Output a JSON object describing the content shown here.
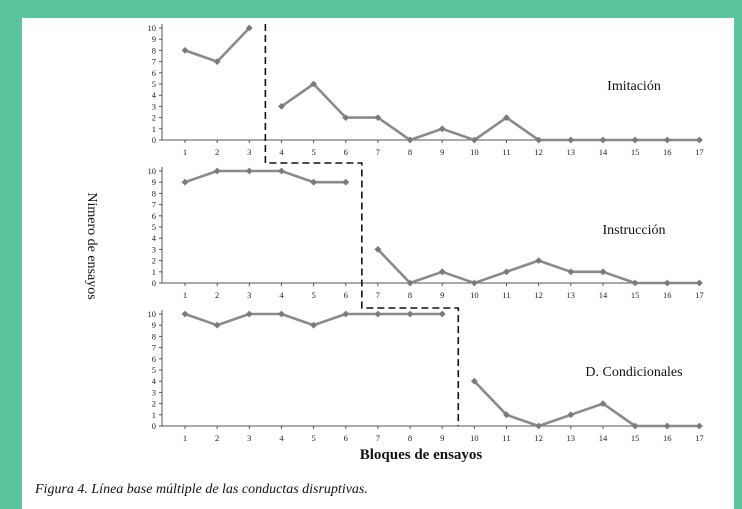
{
  "chart_data": {
    "type": "line",
    "x": [
      1,
      2,
      3,
      4,
      5,
      6,
      7,
      8,
      9,
      10,
      11,
      12,
      13,
      14,
      15,
      16,
      17
    ],
    "xlabel": "Bloques de ensayos",
    "ylabel": "Nimero de ensayos",
    "ylim": [
      0,
      10
    ],
    "yticks": [
      0,
      1,
      2,
      3,
      4,
      5,
      6,
      7,
      8,
      9,
      10
    ],
    "xticks": [
      1,
      2,
      3,
      4,
      5,
      6,
      7,
      8,
      9,
      10,
      11,
      12,
      13,
      14,
      15,
      16,
      17
    ],
    "line_color": "#8a8a8a",
    "phase_line_style": "dashed",
    "panels": [
      {
        "name": "Imitación",
        "baseline": {
          "x": [
            1,
            2,
            3
          ],
          "y": [
            8,
            7,
            10
          ]
        },
        "intervention": {
          "x": [
            4,
            5,
            6,
            7,
            8,
            9,
            10,
            11,
            12,
            13,
            14,
            15,
            16,
            17
          ],
          "y": [
            3,
            5,
            2,
            2,
            0,
            1,
            0,
            2,
            0,
            0,
            0,
            0,
            0,
            0
          ]
        },
        "phase_change_after": 3
      },
      {
        "name": "Instrucción",
        "baseline": {
          "x": [
            1,
            2,
            3,
            4,
            5,
            6
          ],
          "y": [
            9,
            10,
            10,
            10,
            9,
            9
          ]
        },
        "intervention": {
          "x": [
            7,
            8,
            9,
            10,
            11,
            12,
            13,
            14,
            15,
            16,
            17
          ],
          "y": [
            3,
            0,
            1,
            0,
            1,
            2,
            1,
            1,
            0,
            0,
            0
          ]
        },
        "phase_change_after": 6
      },
      {
        "name": "D. Condicionales",
        "baseline": {
          "x": [
            1,
            2,
            3,
            4,
            5,
            6,
            7,
            8,
            9
          ],
          "y": [
            10,
            9,
            10,
            10,
            9,
            10,
            10,
            10,
            10
          ]
        },
        "intervention": {
          "x": [
            10,
            11,
            12,
            13,
            14,
            15,
            16,
            17
          ],
          "y": [
            4,
            1,
            0,
            1,
            2,
            0,
            0,
            0
          ]
        },
        "phase_change_after": 9
      }
    ]
  },
  "caption": "Figura 4. Línea base múltiple de las conductas disruptivas."
}
